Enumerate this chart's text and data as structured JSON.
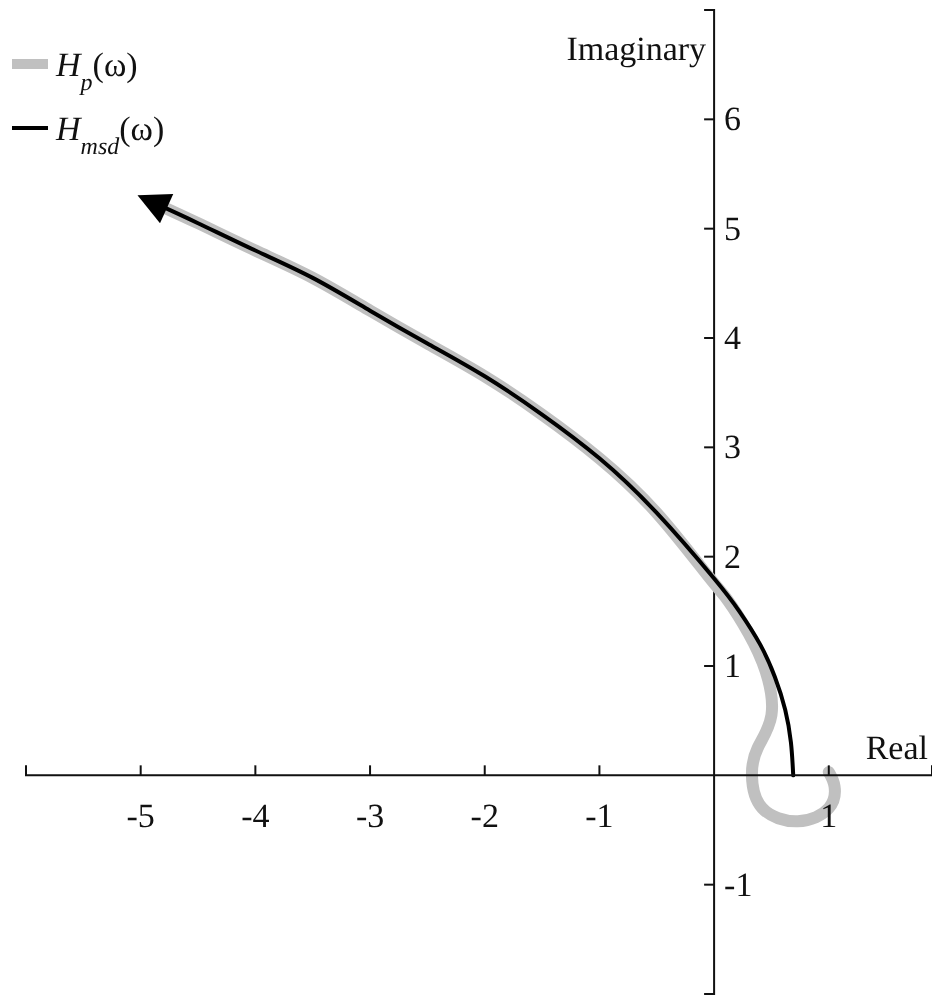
{
  "chart_data": {
    "type": "line",
    "xlabel": "Real",
    "ylabel": "Imaginary",
    "xlim": [
      -6,
      1.9
    ],
    "ylim": [
      -2,
      7
    ],
    "xticks": [
      -5,
      -4,
      -3,
      -2,
      -1,
      1
    ],
    "yticks": [
      -1,
      1,
      2,
      3,
      4,
      5,
      6
    ],
    "grid": false,
    "legend": "top left",
    "marker": "none",
    "line_style": "solid",
    "series": [
      {
        "name": "H$_{p}$(ω)",
        "color": "#c0c0c0",
        "x": [
          1.0,
          1.05,
          1.0,
          0.73,
          0.42,
          0.33,
          0.38,
          0.5,
          0.45,
          0.3,
          0.12,
          -0.05,
          -0.5,
          -1,
          -1.5,
          -2,
          -2.5,
          -3,
          -3.5,
          -4,
          -4.5,
          -4.85
        ],
        "values": [
          0.03,
          -0.1,
          -0.3,
          -0.42,
          -0.3,
          0,
          0.25,
          0.55,
          0.95,
          1.3,
          1.6,
          1.82,
          2.4,
          2.9,
          3.3,
          3.65,
          3.95,
          4.25,
          4.55,
          4.8,
          5.05,
          5.22
        ]
      },
      {
        "name": "H$_{msd}$(ω)",
        "color": "#000000",
        "x": [
          0.69,
          0.67,
          0.62,
          0.53,
          0.4,
          0.22,
          0,
          -0.5,
          -1,
          -1.5,
          -2,
          -2.5,
          -3,
          -3.5,
          -4,
          -4.5,
          -4.85
        ],
        "values": [
          0,
          0.3,
          0.6,
          0.9,
          1.2,
          1.5,
          1.8,
          2.4,
          2.9,
          3.3,
          3.65,
          3.95,
          4.25,
          4.55,
          4.8,
          5.05,
          5.22
        ]
      }
    ]
  }
}
